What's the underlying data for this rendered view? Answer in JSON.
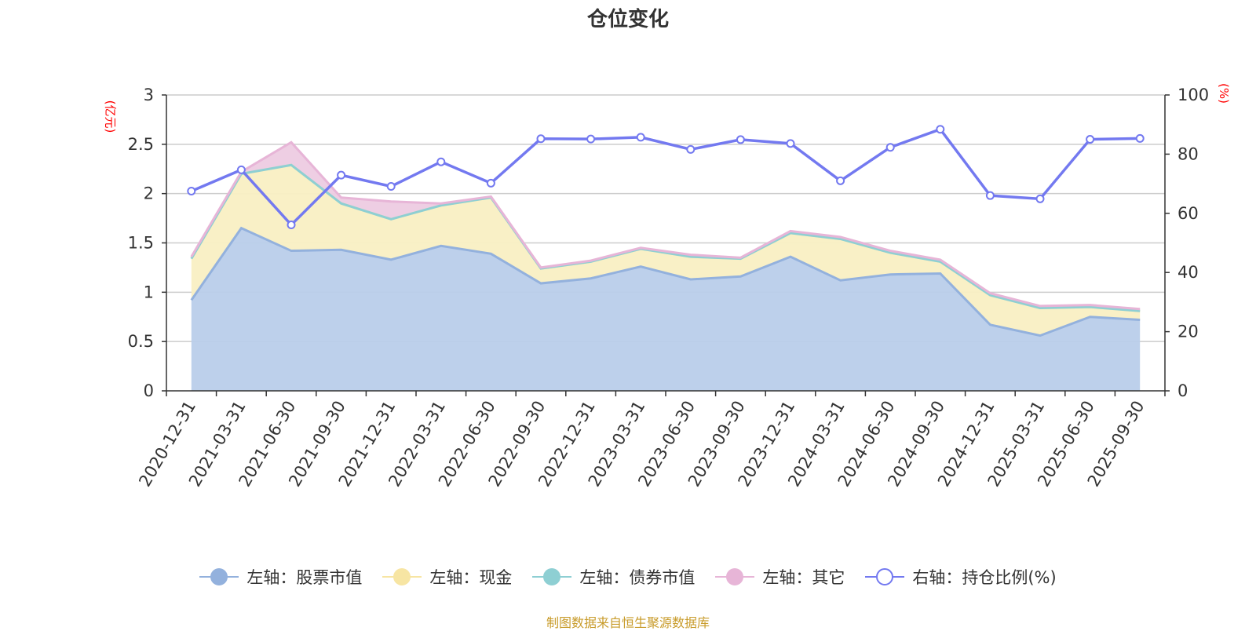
{
  "chart_data": {
    "type": "area",
    "title": "仓位变化",
    "left_axis_unit": "(亿元)",
    "right_axis_unit": "(%)",
    "categories": [
      "2020-12-31",
      "2021-03-31",
      "2021-06-30",
      "2021-09-30",
      "2021-12-31",
      "2022-03-31",
      "2022-06-30",
      "2022-09-30",
      "2022-12-31",
      "2023-03-31",
      "2023-06-30",
      "2023-09-30",
      "2023-12-31",
      "2024-03-31",
      "2024-06-30",
      "2024-09-30",
      "2024-12-31",
      "2025-03-31",
      "2025-06-30",
      "2025-09-30"
    ],
    "left_ylim": [
      0,
      3
    ],
    "left_ticks": [
      "0",
      "0.5",
      "1",
      "1.5",
      "2",
      "2.5",
      "3"
    ],
    "right_ylim": [
      0,
      100
    ],
    "right_ticks": [
      "0",
      "20",
      "40",
      "60",
      "80",
      "100"
    ],
    "series": [
      {
        "name": "左轴：股票市值",
        "axis": "left",
        "color": "#93b1dd",
        "fill": "#b9cdea",
        "values": [
          0.92,
          1.65,
          1.42,
          1.43,
          1.33,
          1.47,
          1.39,
          1.09,
          1.14,
          1.26,
          1.13,
          1.16,
          1.36,
          1.12,
          1.18,
          1.19,
          0.67,
          0.56,
          0.75,
          0.72
        ]
      },
      {
        "name": "左轴：现金",
        "axis": "left",
        "color": "#f7e5a3",
        "fill": "#f9efc3",
        "values": [
          0.42,
          0.55,
          0.87,
          0.47,
          0.41,
          0.41,
          0.57,
          0.15,
          0.17,
          0.18,
          0.23,
          0.18,
          0.24,
          0.42,
          0.22,
          0.12,
          0.3,
          0.28,
          0.1,
          0.09
        ]
      },
      {
        "name": "左轴：债券市值",
        "axis": "left",
        "color": "#8ecfd3",
        "fill": "#c3e6e8",
        "values": [
          0,
          0,
          0,
          0,
          0,
          0,
          0,
          0,
          0,
          0,
          0,
          0,
          0,
          0,
          0,
          0,
          0,
          0,
          0,
          0
        ]
      },
      {
        "name": "左轴：其它",
        "axis": "left",
        "color": "#e7b5d7",
        "fill": "#edcbe2",
        "values": [
          0.02,
          0.02,
          0.23,
          0.06,
          0.18,
          0.02,
          0.01,
          0.01,
          0.01,
          0.01,
          0.02,
          0.01,
          0.02,
          0.02,
          0.02,
          0.02,
          0.02,
          0.02,
          0.02,
          0.02
        ]
      },
      {
        "name": "右轴：持仓比例(%)",
        "axis": "right",
        "color": "#7379f0",
        "values": [
          67.5,
          74.7,
          56.1,
          72.9,
          69.1,
          77.4,
          70.2,
          85.2,
          85.1,
          85.7,
          81.6,
          84.9,
          83.6,
          71.0,
          82.3,
          88.4,
          66.0,
          64.9,
          85.0,
          85.3
        ]
      }
    ]
  },
  "footer": "制图数据来自恒生聚源数据库"
}
